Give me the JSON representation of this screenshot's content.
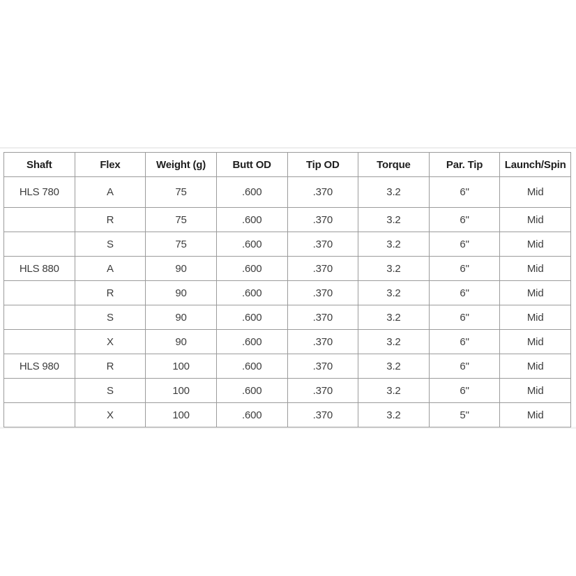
{
  "page": {
    "background": "#ffffff"
  },
  "colors": {
    "border": "#9b9b9b",
    "header_text": "#1f1f1f",
    "cell_text": "#3d3d3d",
    "faint_band_top": "#ededed",
    "faint_band_bottom": "#f3f3f3"
  },
  "chart_data": {
    "type": "table",
    "title": "",
    "columns": [
      "Shaft",
      "Flex",
      "Weight (g)",
      "Butt OD",
      "Tip OD",
      "Torque",
      "Par. Tip",
      "Launch/Spin"
    ],
    "rows": [
      [
        "HLS 780",
        "A",
        "75",
        ".600",
        ".370",
        "3.2",
        "6\"",
        "Mid"
      ],
      [
        "",
        "R",
        "75",
        ".600",
        ".370",
        "3.2",
        "6\"",
        "Mid"
      ],
      [
        "",
        "S",
        "75",
        ".600",
        ".370",
        "3.2",
        "6\"",
        "Mid"
      ],
      [
        "HLS 880",
        "A",
        "90",
        ".600",
        ".370",
        "3.2",
        "6\"",
        "Mid"
      ],
      [
        "",
        "R",
        "90",
        ".600",
        ".370",
        "3.2",
        "6\"",
        "Mid"
      ],
      [
        "",
        "S",
        "90",
        ".600",
        ".370",
        "3.2",
        "6\"",
        "Mid"
      ],
      [
        "",
        "X",
        "90",
        ".600",
        ".370",
        "3.2",
        "6\"",
        "Mid"
      ],
      [
        "HLS 980",
        "R",
        "100",
        ".600",
        ".370",
        "3.2",
        "6\"",
        "Mid"
      ],
      [
        "",
        "S",
        "100",
        ".600",
        ".370",
        "3.2",
        "6\"",
        "Mid"
      ],
      [
        "",
        "X",
        "100",
        ".600",
        ".370",
        "3.2",
        "5\"",
        "Mid"
      ]
    ],
    "shaft_groups": [
      {
        "shaft": "HLS 780",
        "flexes": [
          "A",
          "R",
          "S"
        ],
        "weight_g": 75
      },
      {
        "shaft": "HLS 880",
        "flexes": [
          "A",
          "R",
          "S",
          "X"
        ],
        "weight_g": 90
      },
      {
        "shaft": "HLS 980",
        "flexes": [
          "R",
          "S",
          "X"
        ],
        "weight_g": 100
      }
    ]
  }
}
